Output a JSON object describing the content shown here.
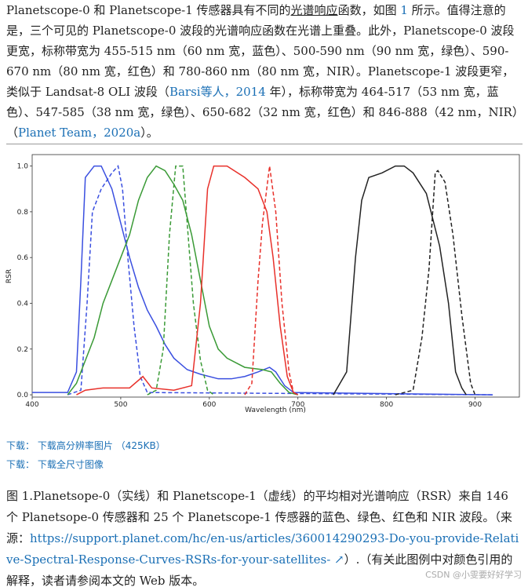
{
  "paragraph": [
    "Planetscope-0 和 Planetscope-1 传感器具有不同的",
    "光谱响应",
    "函数，如图 ",
    "1",
    " 所示。值得注意的是，三个可见的 Planetscope-0 波段的光谱响应函数在光谱上重叠。此外，Planetscope-0 波段更宽，标称带宽为 455-515 nm（60 nm 宽，蓝色）、500-590 nm（90 nm 宽，绿色）、590-670 nm（80 nm 宽，红色）和 780-860 nm（80 nm 宽，NIR）。Planetscope-1 波段更窄，类似于 Landsat-8 OLI 波段（",
    "Barsi等人，2014",
    " 年），标称带宽为 464-517（53 nm 宽，蓝色）、547-585（38 nm 宽，绿色）、650-682（32 nm 宽，红色）和 846-888（42 nm，NIR）（",
    "Planet Team，2020a",
    "）。"
  ],
  "chart_data": {
    "type": "line",
    "x_label": "Wavelength (nm)",
    "y_label": "RSR",
    "xlim": [
      400,
      950
    ],
    "ylim": [
      -0.01,
      1.05
    ],
    "grid": false,
    "xticks": [
      400,
      500,
      600,
      700,
      800,
      900
    ],
    "yticks": [
      {
        "value": 0,
        "label": "0.0"
      },
      0.2,
      0.4,
      0.6,
      0.8,
      {
        "value": 1,
        "label": "1.0"
      }
    ],
    "series": [
      {
        "color": "#3a4fe0",
        "dashed": false,
        "x": [
          400,
          440,
          450,
          455,
          460,
          470,
          478,
          490,
          500,
          510,
          520,
          530,
          540,
          550,
          560,
          575,
          590,
          610,
          625,
          640,
          655,
          668,
          675,
          685,
          695,
          920
        ],
        "values": [
          0.01,
          0.01,
          0.1,
          0.5,
          0.95,
          1.0,
          1.0,
          0.9,
          0.75,
          0.6,
          0.47,
          0.37,
          0.3,
          0.22,
          0.16,
          0.11,
          0.09,
          0.07,
          0.07,
          0.08,
          0.1,
          0.12,
          0.1,
          0.04,
          0.01,
          0
        ]
      },
      {
        "color": "#3a4fe0",
        "dashed": true,
        "x": [
          440,
          455,
          462,
          468,
          478,
          490,
          497,
          502,
          508,
          515,
          522,
          530,
          920
        ],
        "values": [
          0,
          0.02,
          0.4,
          0.8,
          0.9,
          0.97,
          1.0,
          0.9,
          0.6,
          0.3,
          0.08,
          0.01,
          0
        ]
      },
      {
        "color": "#3a9a36",
        "dashed": false,
        "x": [
          440,
          450,
          460,
          470,
          480,
          490,
          500,
          510,
          520,
          530,
          540,
          550,
          560,
          570,
          580,
          590,
          600,
          610,
          620,
          640,
          660,
          670,
          680,
          690,
          700
        ],
        "values": [
          0,
          0.05,
          0.15,
          0.25,
          0.4,
          0.5,
          0.6,
          0.7,
          0.85,
          0.95,
          1.0,
          0.98,
          0.92,
          0.85,
          0.7,
          0.5,
          0.3,
          0.2,
          0.16,
          0.12,
          0.11,
          0.1,
          0.05,
          0.01,
          0
        ]
      },
      {
        "color": "#3a9a36",
        "dashed": true,
        "x": [
          530,
          540,
          548,
          555,
          562,
          570,
          576,
          582,
          590,
          598,
          605
        ],
        "values": [
          0,
          0.02,
          0.2,
          0.7,
          1.0,
          1.0,
          0.7,
          0.4,
          0.15,
          0.02,
          0
        ]
      },
      {
        "color": "#e8302a",
        "dashed": false,
        "x": [
          450,
          460,
          480,
          510,
          525,
          535,
          560,
          580,
          590,
          598,
          605,
          620,
          640,
          655,
          665,
          672,
          680,
          688,
          695,
          700
        ],
        "values": [
          0,
          0.02,
          0.03,
          0.03,
          0.08,
          0.03,
          0.02,
          0.04,
          0.4,
          0.9,
          1.0,
          1.0,
          0.95,
          0.9,
          0.8,
          0.6,
          0.3,
          0.08,
          0.01,
          0
        ]
      },
      {
        "color": "#e8302a",
        "dashed": true,
        "x": [
          640,
          648,
          655,
          660,
          668,
          675,
          682,
          690,
          695,
          700
        ],
        "values": [
          0,
          0.05,
          0.5,
          0.75,
          1.0,
          0.8,
          0.4,
          0.1,
          0.01,
          0
        ]
      },
      {
        "color": "#222222",
        "dashed": false,
        "x": [
          740,
          755,
          765,
          772,
          780,
          795,
          810,
          820,
          830,
          845,
          860,
          870,
          878,
          885,
          890
        ],
        "values": [
          0,
          0.1,
          0.6,
          0.85,
          0.95,
          0.97,
          1.0,
          1.0,
          0.97,
          0.88,
          0.65,
          0.4,
          0.1,
          0.03,
          0
        ]
      },
      {
        "color": "#222222",
        "dashed": true,
        "x": [
          810,
          830,
          840,
          848,
          855,
          858,
          866,
          875,
          885,
          895,
          900
        ],
        "values": [
          0,
          0.02,
          0.25,
          0.55,
          0.97,
          0.98,
          0.93,
          0.7,
          0.35,
          0.05,
          0
        ]
      }
    ]
  },
  "downloads": [
    {
      "prefix": "下载：",
      "link": "下载高分辨率图片",
      "size": "（425KB）"
    },
    {
      "prefix": "下载：",
      "link": "下载全尺寸图像"
    }
  ],
  "caption": {
    "text": "图 1.Planetsope-0（实线）和 Planetscope-1（虚线）的平均相对光谱响应（RSR）来自 146 个 Planetsope-0 传感器和 25 个 Planetscope-1 传感器的蓝色、绿色、红色和 NIR 波段。（来源：",
    "link": "https://support.planet.com/hc/en-us/articles/360014290293-Do-you-provide-Relative-Spectral-Response-Curves-RSRs-for-your-satellites- ↗",
    "tail": "）.（有关此图例中对颜色引用的解释，读者请参阅本文的 Web 版本。"
  },
  "watermark": "CSDN @小雯要好好学习"
}
